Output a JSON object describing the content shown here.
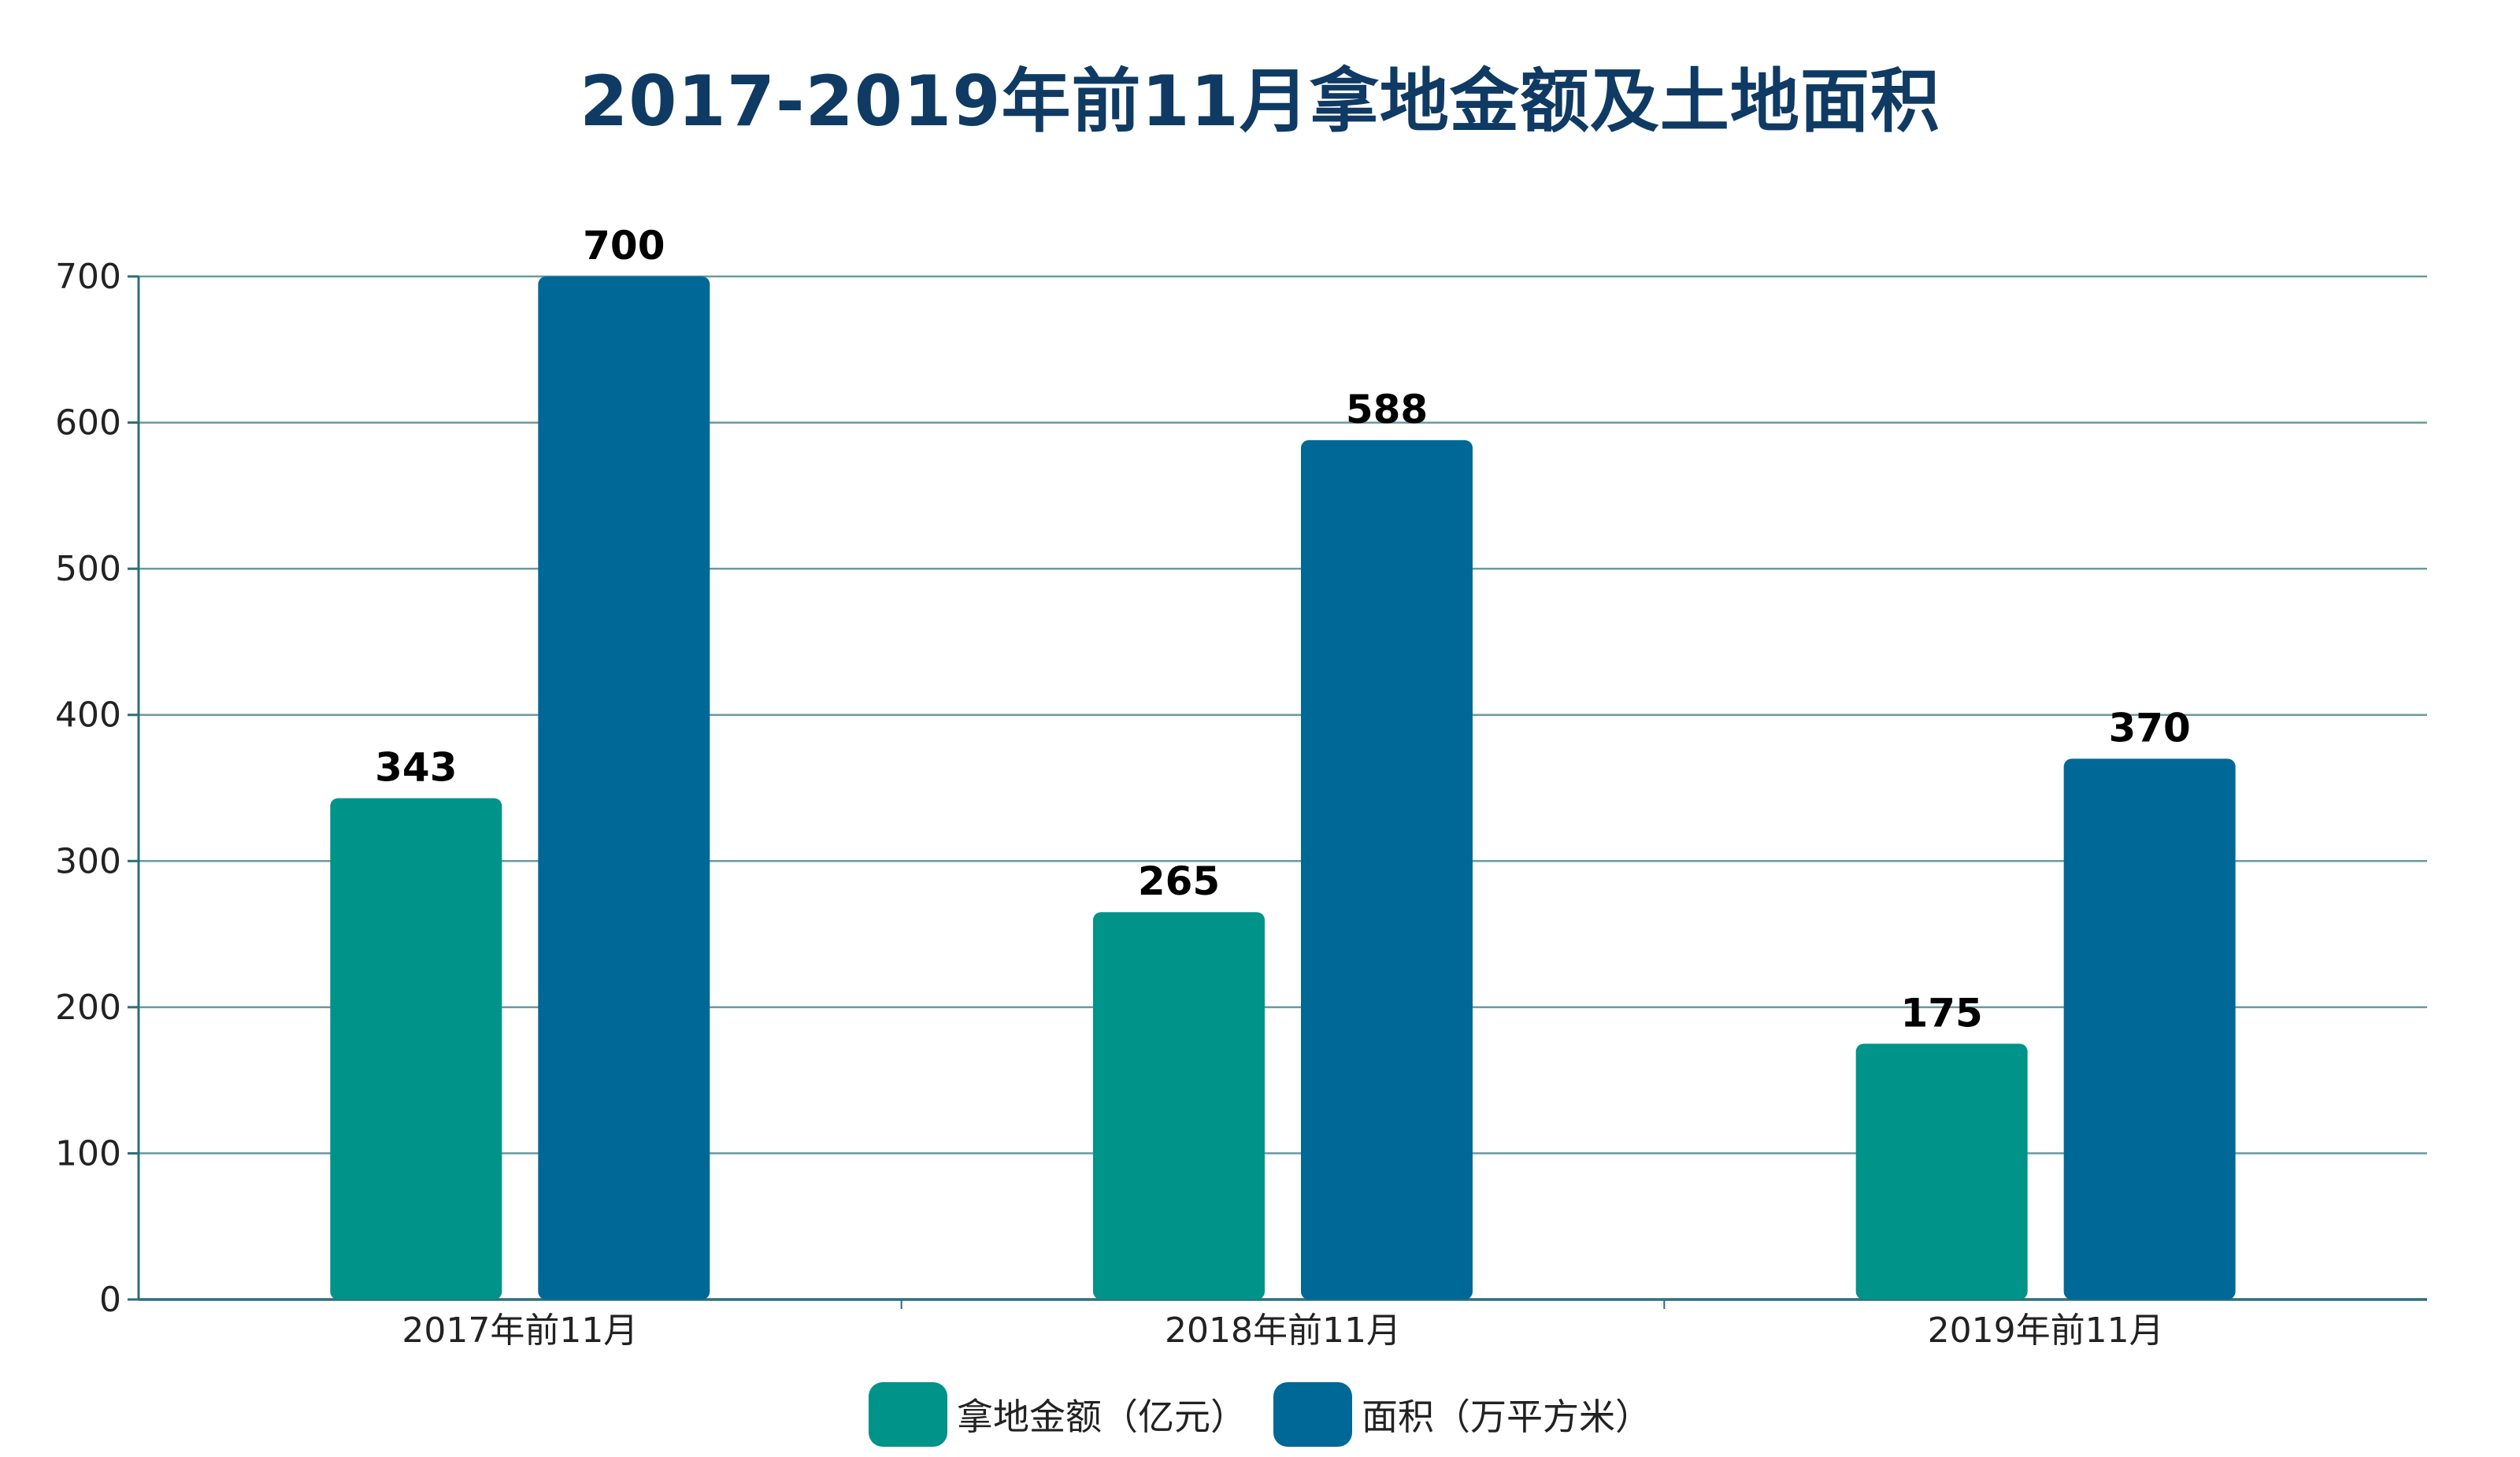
{
  "chart_data": {
    "type": "bar",
    "title": "2017-2019年前11月拿地金额及土地面积",
    "categories": [
      "2017年前11月",
      "2018年前11月",
      "2019年前11月"
    ],
    "series": [
      {
        "name": "拿地金额（亿元）",
        "values": [
          343,
          265,
          175
        ],
        "color": "#00938a"
      },
      {
        "name": "面积（万平方米）",
        "values": [
          700,
          588,
          370
        ],
        "color": "#006896"
      }
    ],
    "ylim": [
      0,
      700
    ],
    "yticks": [
      0,
      100,
      200,
      300,
      400,
      500,
      600,
      700
    ],
    "grid": true,
    "legend_position": "bottom-center",
    "data_labels": true,
    "colors": {
      "grid": "#6a9aa0",
      "axis": "#2d6e78",
      "title": "#0f3a63"
    }
  }
}
